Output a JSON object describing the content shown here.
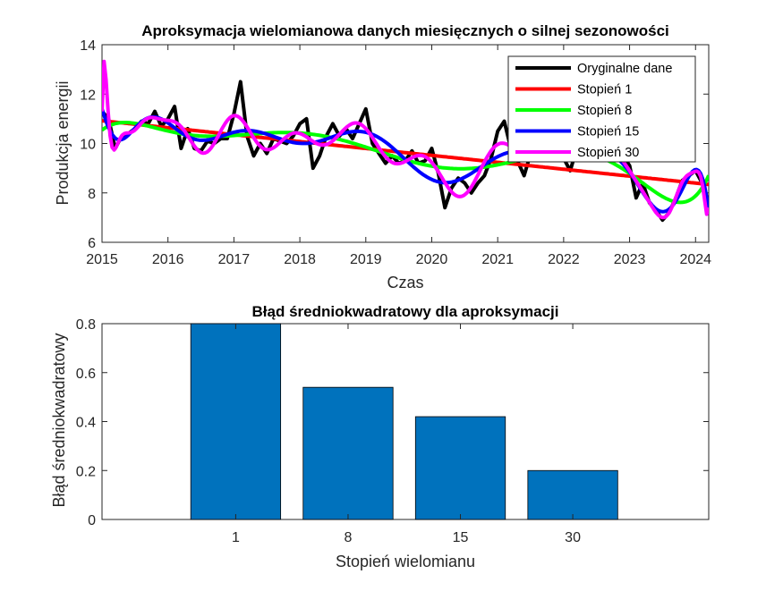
{
  "chart_data": [
    {
      "type": "line",
      "title": "Aproksymacja wielomianowa danych miesięcznych o silnej sezonowości",
      "xlabel": "Czas",
      "ylabel": "Produkcja energii",
      "xlim": [
        2015,
        2024.2
      ],
      "ylim": [
        6,
        14
      ],
      "xticks": [
        2015,
        2016,
        2017,
        2018,
        2019,
        2020,
        2021,
        2022,
        2023,
        2024
      ],
      "yticks": [
        6,
        8,
        10,
        12,
        14
      ],
      "grid": false,
      "legend_position": "top-right",
      "series": [
        {
          "name": "Oryginalne dane",
          "color": "#000000",
          "x": [
            2015.0,
            2015.1,
            2015.2,
            2015.3,
            2015.4,
            2015.5,
            2015.6,
            2015.7,
            2015.8,
            2015.9,
            2016.0,
            2016.1,
            2016.2,
            2016.3,
            2016.4,
            2016.5,
            2016.6,
            2016.7,
            2016.8,
            2016.9,
            2017.0,
            2017.1,
            2017.2,
            2017.3,
            2017.4,
            2017.5,
            2017.6,
            2017.7,
            2017.8,
            2017.9,
            2018.0,
            2018.1,
            2018.2,
            2018.3,
            2018.4,
            2018.5,
            2018.6,
            2018.7,
            2018.8,
            2018.9,
            2019.0,
            2019.1,
            2019.2,
            2019.3,
            2019.4,
            2019.5,
            2019.6,
            2019.7,
            2019.8,
            2019.9,
            2020.0,
            2020.1,
            2020.2,
            2020.3,
            2020.4,
            2020.5,
            2020.6,
            2020.7,
            2020.8,
            2020.9,
            2021.0,
            2021.1,
            2021.2,
            2021.3,
            2021.4,
            2021.5,
            2021.6,
            2021.7,
            2021.8,
            2021.9,
            2022.0,
            2022.1,
            2022.2,
            2022.3,
            2022.4,
            2022.5,
            2022.6,
            2022.7,
            2022.8,
            2022.9,
            2023.0,
            2023.1,
            2023.2,
            2023.3,
            2023.4,
            2023.5,
            2023.6,
            2023.7,
            2023.8,
            2023.9,
            2024.0,
            2024.1,
            2024.2
          ],
          "y": [
            11.3,
            11.0,
            9.8,
            10.3,
            10.4,
            10.6,
            10.9,
            10.8,
            11.3,
            10.7,
            11.0,
            11.5,
            9.8,
            10.6,
            9.8,
            9.7,
            10.1,
            10.0,
            10.2,
            10.2,
            11.2,
            12.5,
            10.3,
            9.5,
            10.0,
            9.6,
            10.2,
            10.1,
            10.0,
            10.3,
            10.8,
            11.0,
            9.0,
            9.5,
            10.3,
            10.8,
            10.3,
            10.6,
            10.2,
            10.8,
            11.4,
            10.0,
            9.6,
            9.2,
            9.5,
            9.2,
            9.3,
            9.7,
            9.2,
            9.3,
            9.8,
            8.8,
            7.4,
            8.2,
            8.6,
            8.4,
            8.0,
            8.4,
            8.7,
            9.4,
            10.5,
            10.9,
            9.8,
            9.3,
            8.7,
            9.6,
            9.5,
            9.9,
            9.8,
            9.7,
            9.4,
            8.9,
            9.8,
            9.5,
            9.6,
            9.4,
            9.6,
            9.3,
            9.9,
            9.5,
            9.1,
            7.8,
            8.4,
            7.6,
            7.3,
            6.9,
            7.2,
            7.8,
            8.5,
            8.7,
            8.9,
            8.4,
            7.4
          ]
        },
        {
          "name": "Stopień 1",
          "color": "#ff0000"
        },
        {
          "name": "Stopień 8",
          "color": "#00ff00"
        },
        {
          "name": "Stopień 15",
          "color": "#0000ff"
        },
        {
          "name": "Stopień 30",
          "color": "#ff00ff"
        }
      ]
    },
    {
      "type": "bar",
      "title": "Błąd średniokwadratowy dla aproksymacji",
      "xlabel": "Stopień wielomianu",
      "ylabel": "Błąd średniokwadratowy",
      "categories": [
        "1",
        "8",
        "15",
        "30"
      ],
      "values": [
        0.8,
        0.54,
        0.42,
        0.2
      ],
      "ylim": [
        0,
        0.8
      ],
      "yticks": [
        "0",
        "0.2",
        "0.4",
        "0.6",
        "0.8"
      ],
      "bar_color": "#0072bd",
      "grid": false
    }
  ]
}
